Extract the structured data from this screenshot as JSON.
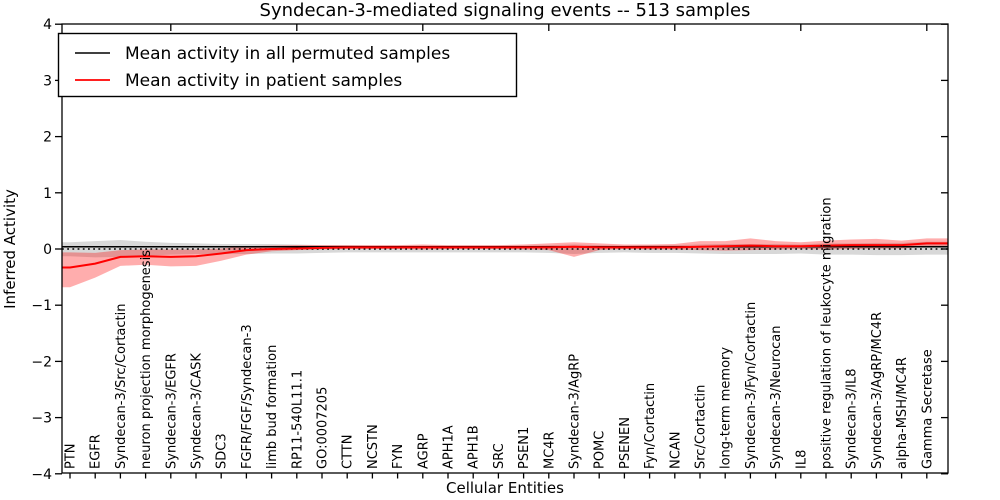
{
  "title": "Syndecan-3-mediated signaling events -- 513 samples",
  "axes": {
    "x_label": "Cellular Entities",
    "y_label": "Inferred Activity",
    "y_ticks": [
      4,
      3,
      2,
      1,
      0,
      -1,
      -2,
      -3,
      -4
    ]
  },
  "legend": {
    "items": [
      {
        "label": "Mean activity in all permuted samples",
        "color": "#000000"
      },
      {
        "label": "Mean activity in patient samples",
        "color": "#ff0000"
      }
    ]
  },
  "chart_data": {
    "type": "line",
    "title": "Syndecan-3-mediated signaling events -- 513 samples",
    "xlabel": "Cellular Entities",
    "ylabel": "Inferred Activity",
    "ylim": [
      -4,
      4
    ],
    "grid": false,
    "legend_position": "upper left",
    "categories": [
      "PTN",
      "EGFR",
      "Syndecan-3/Src/Cortactin",
      "neuron projection morphogenesis",
      "Syndecan-3/EGFR",
      "Syndecan-3/CASK",
      "SDC3",
      "FGFR/FGF/Syndecan-3",
      "limb bud formation",
      "RP11-540L11.1",
      "GO:0007205",
      "CTTN",
      "NCSTN",
      "FYN",
      "AGRP",
      "APH1A",
      "APH1B",
      "SRC",
      "PSEN1",
      "MC4R",
      "Syndecan-3/AgRP",
      "POMC",
      "PSENEN",
      "Fyn/Cortactin",
      "NCAN",
      "Src/Cortactin",
      "long-term memory",
      "Syndecan-3/Fyn/Cortactin",
      "Syndecan-3/Neurocan",
      "IL8",
      "positive regulation of leukocyte migration",
      "Syndecan-3/IL8",
      "Syndecan-3/AgRP/MC4R",
      "alpha-MSH/MC4R",
      "Gamma Secretase"
    ],
    "series": [
      {
        "name": "Mean activity in all permuted samples",
        "color": "#000000",
        "values": [
          0.04,
          0.04,
          0.04,
          0.04,
          0.04,
          0.04,
          0.04,
          0.04,
          0.04,
          0.04,
          0.04,
          0.04,
          0.04,
          0.04,
          0.04,
          0.04,
          0.04,
          0.04,
          0.04,
          0.04,
          0.04,
          0.04,
          0.04,
          0.04,
          0.04,
          0.04,
          0.04,
          0.04,
          0.04,
          0.04,
          0.04,
          0.04,
          0.04,
          0.04,
          0.04
        ]
      },
      {
        "name": "Mean activity in patient samples",
        "color": "#ff0000",
        "values": [
          -0.33,
          -0.26,
          -0.14,
          -0.13,
          -0.14,
          -0.13,
          -0.08,
          -0.02,
          0.0,
          0.01,
          0.02,
          0.03,
          0.03,
          0.03,
          0.03,
          0.03,
          0.03,
          0.03,
          0.03,
          0.03,
          0.04,
          0.03,
          0.03,
          0.03,
          0.03,
          0.04,
          0.05,
          0.06,
          0.05,
          0.05,
          0.06,
          0.07,
          0.07,
          0.07,
          0.1
        ]
      }
    ],
    "bands": [
      {
        "name": "permuted samples range",
        "color": "rgba(110,110,110,0.27)",
        "lower": [
          -0.13,
          -0.15,
          -0.14,
          -0.12,
          -0.1,
          -0.09,
          -0.09,
          -0.09,
          -0.08,
          -0.08,
          -0.07,
          -0.06,
          -0.06,
          -0.06,
          -0.06,
          -0.06,
          -0.06,
          -0.06,
          -0.06,
          -0.07,
          -0.09,
          -0.07,
          -0.06,
          -0.07,
          -0.07,
          -0.08,
          -0.09,
          -0.09,
          -0.09,
          -0.08,
          -0.1,
          -0.1,
          -0.11,
          -0.11,
          -0.1
        ],
        "upper": [
          0.12,
          0.14,
          0.16,
          0.13,
          0.11,
          0.1,
          0.09,
          0.09,
          0.09,
          0.08,
          0.07,
          0.07,
          0.06,
          0.06,
          0.06,
          0.06,
          0.06,
          0.06,
          0.06,
          0.07,
          0.08,
          0.07,
          0.06,
          0.07,
          0.07,
          0.08,
          0.09,
          0.09,
          0.09,
          0.08,
          0.1,
          0.1,
          0.11,
          0.11,
          0.13
        ]
      },
      {
        "name": "patient samples range",
        "color": "rgba(255,0,0,0.32)",
        "lower": [
          -0.68,
          -0.51,
          -0.3,
          -0.28,
          -0.31,
          -0.3,
          -0.21,
          -0.1,
          -0.04,
          -0.02,
          -0.01,
          0.0,
          0.0,
          0.0,
          -0.01,
          0.0,
          0.0,
          0.0,
          -0.01,
          -0.02,
          -0.14,
          -0.02,
          0.0,
          -0.01,
          -0.01,
          -0.02,
          -0.03,
          -0.02,
          -0.01,
          0.0,
          -0.01,
          0.0,
          0.01,
          0.01,
          0.04
        ],
        "upper": [
          -0.06,
          -0.07,
          -0.02,
          -0.01,
          -0.01,
          -0.01,
          0.01,
          0.05,
          0.06,
          0.07,
          0.07,
          0.07,
          0.07,
          0.07,
          0.08,
          0.07,
          0.07,
          0.07,
          0.08,
          0.1,
          0.12,
          0.1,
          0.08,
          0.08,
          0.09,
          0.14,
          0.14,
          0.19,
          0.14,
          0.12,
          0.15,
          0.17,
          0.18,
          0.15,
          0.19
        ]
      }
    ],
    "reference_line": {
      "y": 0,
      "style": "dotted",
      "color": "#000000"
    }
  }
}
